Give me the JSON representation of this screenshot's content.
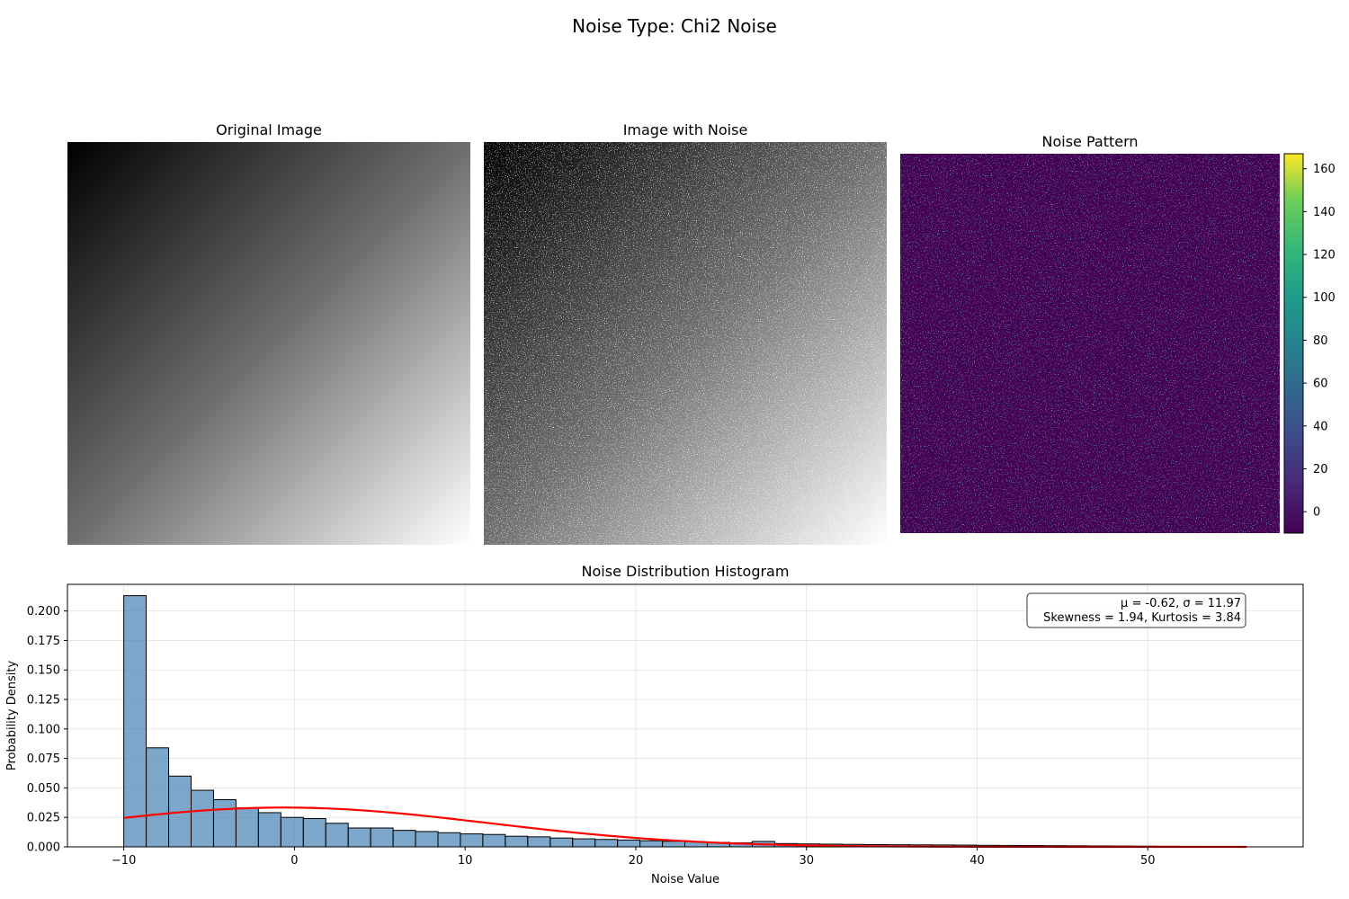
{
  "figure": {
    "suptitle": "Noise Type: Chi2 Noise"
  },
  "panels": {
    "original": {
      "title": "Original Image"
    },
    "noisy": {
      "title": "Image with Noise"
    },
    "noise_pattern": {
      "title": "Noise Pattern",
      "colormap": "viridis",
      "colorbar": {
        "min": -10,
        "max": 167,
        "ticks": [
          0,
          20,
          40,
          60,
          80,
          100,
          120,
          140,
          160
        ]
      }
    }
  },
  "chart_data": {
    "type": "bar",
    "title": "Noise Distribution Histogram",
    "xlabel": "Noise Value",
    "ylabel": "Probability Density",
    "xlim": [
      -13.3,
      59.1
    ],
    "ylim": [
      0,
      0.2226
    ],
    "xticks": [
      -10,
      0,
      10,
      20,
      30,
      40,
      50
    ],
    "yticks": [
      0.0,
      0.025,
      0.05,
      0.075,
      0.1,
      0.125,
      0.15,
      0.175,
      0.2
    ],
    "ytick_labels": [
      "0.000",
      "0.025",
      "0.050",
      "0.075",
      "0.100",
      "0.125",
      "0.150",
      "0.175",
      "0.200"
    ],
    "xtick_labels": [
      "−10",
      "0",
      "10",
      "20",
      "30",
      "40",
      "50"
    ],
    "grid": true,
    "bin_start": -10,
    "bin_width": 1.315,
    "bar_color": "#4682b4",
    "bar_edge_color": "#000000",
    "values": [
      0.213,
      0.084,
      0.06,
      0.048,
      0.04,
      0.033,
      0.029,
      0.025,
      0.024,
      0.02,
      0.016,
      0.016,
      0.014,
      0.013,
      0.012,
      0.011,
      0.0105,
      0.009,
      0.0085,
      0.0075,
      0.0068,
      0.0063,
      0.0058,
      0.0052,
      0.0047,
      0.0043,
      0.0038,
      0.0034,
      0.0046,
      0.0028,
      0.0025,
      0.0023,
      0.0021,
      0.0019,
      0.0018,
      0.0017,
      0.0016,
      0.0015,
      0.0013,
      0.0012,
      0.0011,
      0.001,
      0.0009,
      0.0008,
      0.0007,
      0.0006,
      0.0005,
      0.0004,
      0.0003,
      0.0002
    ],
    "fit_curve": {
      "color": "#ff0000",
      "mu": -0.62,
      "sigma": 11.97,
      "x_range": [
        -10,
        55.8
      ]
    },
    "stats_box": {
      "line1": "μ = -0.62, σ = 11.97",
      "line2": "Skewness = 1.94, Kurtosis = 3.84",
      "placement": "top-right"
    }
  }
}
